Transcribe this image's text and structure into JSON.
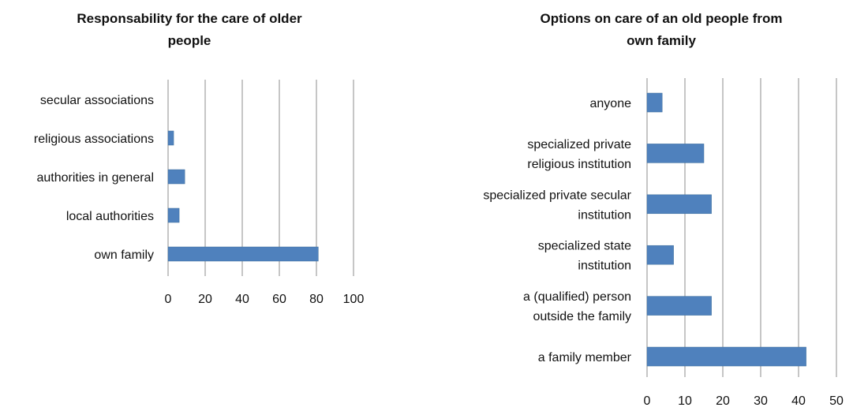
{
  "chart_data": [
    {
      "type": "bar",
      "orientation": "horizontal",
      "title": "Responsability for the care of older people",
      "title_lines": [
        "Responsability for the care of older",
        "people"
      ],
      "categories": [
        "secular associations",
        "religious associations",
        "authorities in general",
        "local authorities",
        "own family"
      ],
      "values": [
        0,
        3,
        9,
        6,
        81
      ],
      "xlim": [
        0,
        100
      ],
      "xticks": [
        0,
        20,
        40,
        60,
        80,
        100
      ],
      "grid": true,
      "legend": "none",
      "bar_color": "#4f81bd"
    },
    {
      "type": "bar",
      "orientation": "horizontal",
      "title": "Options on care of an old people from own family",
      "title_lines": [
        "Options on care of an old people from",
        "own family"
      ],
      "categories": [
        "anyone",
        "specialized private religious institution",
        "specialized private secular institution",
        "specialized state institution",
        "a (qualified) person outside the family",
        "a family member"
      ],
      "category_lines": [
        [
          "anyone"
        ],
        [
          "specialized private",
          "religious institution"
        ],
        [
          "specialized private secular",
          "institution"
        ],
        [
          "specialized state",
          "institution"
        ],
        [
          "a (qualified) person",
          "outside the family"
        ],
        [
          "a family member"
        ]
      ],
      "values": [
        4,
        15,
        17,
        7,
        17,
        42
      ],
      "xlim": [
        0,
        50
      ],
      "xticks": [
        0,
        10,
        20,
        30,
        40,
        50
      ],
      "grid": true,
      "legend": "none",
      "bar_color": "#4f81bd"
    }
  ]
}
